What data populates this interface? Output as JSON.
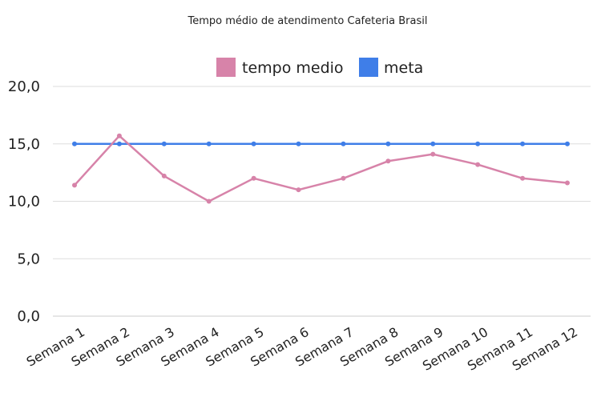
{
  "chart_data": {
    "type": "line",
    "title": "Tempo médio de atendimento Cafeteria Brasil",
    "xlabel": "",
    "ylabel": "",
    "categories": [
      "Semana 1",
      "Semana 2",
      "Semana 3",
      "Semana 4",
      "Semana 5",
      "Semana 6",
      "Semana 7",
      "Semana 8",
      "Semana 9",
      "Semana 10",
      "Semana 11",
      "Semana 12"
    ],
    "series": [
      {
        "name": "tempo medio",
        "color": "#d783a9",
        "values": [
          11.4,
          15.7,
          12.2,
          10.0,
          12.0,
          11.0,
          12.0,
          13.5,
          14.1,
          13.2,
          12.0,
          11.6
        ]
      },
      {
        "name": "meta",
        "color": "#3f7ee8",
        "values": [
          15.0,
          15.0,
          15.0,
          15.0,
          15.0,
          15.0,
          15.0,
          15.0,
          15.0,
          15.0,
          15.0,
          15.0
        ]
      }
    ],
    "ylim": [
      0,
      20
    ],
    "yticks": [
      "0,0",
      "5,0",
      "10,0",
      "15,0",
      "20,0"
    ],
    "grid": true,
    "legend_position": "top-center"
  }
}
